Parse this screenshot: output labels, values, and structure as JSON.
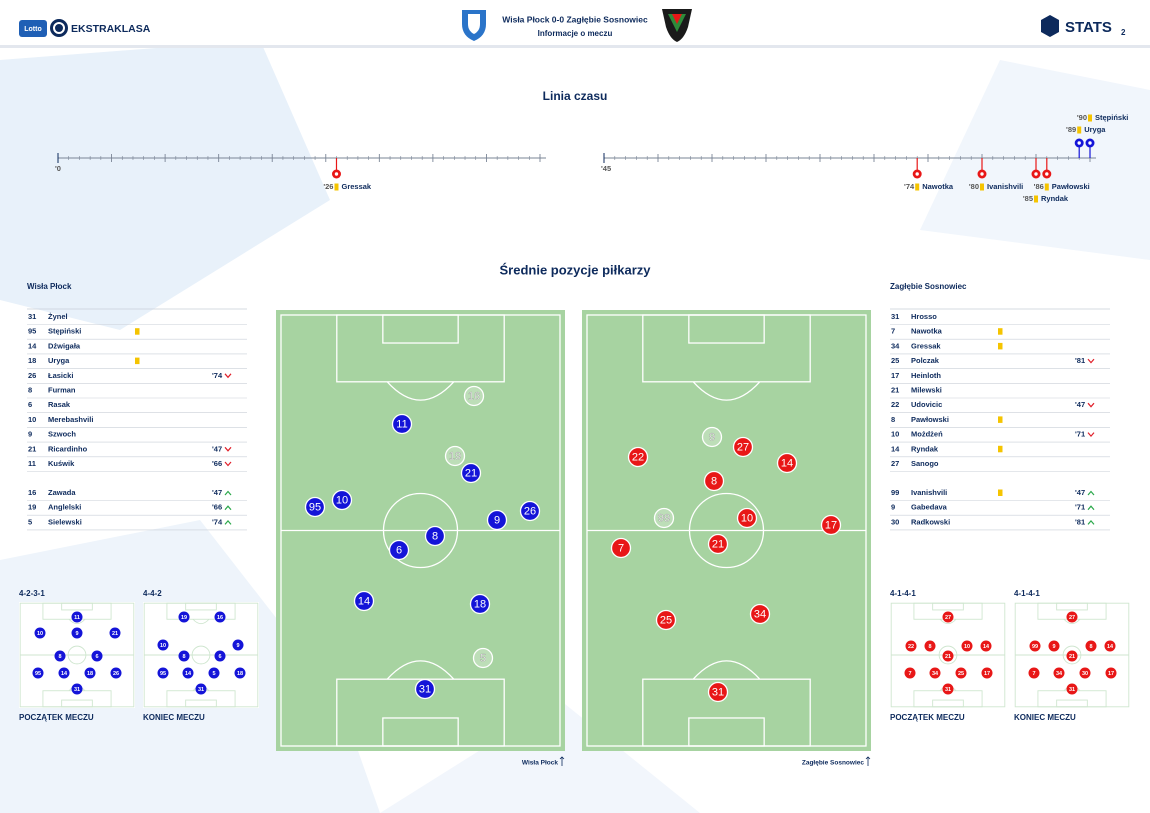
{
  "header": {
    "sponsor": "Lotto",
    "league": "EKSTRAKLASA",
    "title": "Wisła Płock 0-0 Zagłębie Sosnowiec",
    "subtitle": "Informacje o meczu",
    "brand": "STATS",
    "page": "2"
  },
  "timeline": {
    "title": "Linia czasu",
    "halves": [
      {
        "xlim": [
          0,
          45
        ],
        "tick": {
          "value": 0,
          "label": "'0"
        },
        "events": [
          {
            "minute": 26,
            "label": "'26",
            "player": "Gressak",
            "card": "yellow",
            "side": "away"
          }
        ]
      },
      {
        "xlim": [
          45,
          90
        ],
        "tick": {
          "value": 45,
          "label": "'45"
        },
        "events": [
          {
            "minute": 74,
            "label": "'74",
            "player": "Nawotka",
            "card": "yellow",
            "side": "away"
          },
          {
            "minute": 80,
            "label": "'80",
            "player": "Ivanishvili",
            "card": "yellow",
            "side": "away"
          },
          {
            "minute": 85,
            "label": "'85",
            "player": "Ryndak",
            "card": "yellow",
            "side": "away"
          },
          {
            "minute": 86,
            "label": "'86",
            "player": "Pawłowski",
            "card": "yellow",
            "side": "away"
          },
          {
            "minute": 89,
            "label": "'89",
            "player": "Uryga",
            "card": "yellow",
            "side": "home"
          },
          {
            "minute": 90,
            "label": "'90",
            "player": "Stępiński",
            "card": "yellow",
            "side": "home"
          }
        ]
      }
    ]
  },
  "positions": {
    "title": "Średnie pozycje piłkarzy",
    "teams": [
      {
        "name": "Wisła Płock",
        "side": "home",
        "color": "#1414d8",
        "players": [
          {
            "number": 31,
            "name": "Żynel"
          },
          {
            "number": 95,
            "name": "Stępiński",
            "card": "yellow"
          },
          {
            "number": 14,
            "name": "Dźwigała"
          },
          {
            "number": 18,
            "name": "Uryga",
            "card": "yellow"
          },
          {
            "number": 26,
            "name": "Łasicki",
            "sub": "'74",
            "dir": "out"
          },
          {
            "number": 8,
            "name": "Furman"
          },
          {
            "number": 6,
            "name": "Rasak"
          },
          {
            "number": 10,
            "name": "Merebashvili"
          },
          {
            "number": 9,
            "name": "Szwoch"
          },
          {
            "number": 21,
            "name": "Ricardinho",
            "sub": "'47",
            "dir": "out"
          },
          {
            "number": 11,
            "name": "Kuświk",
            "sub": "'66",
            "dir": "out"
          }
        ],
        "subs": [
          {
            "number": 16,
            "name": "Zawada",
            "sub": "'47",
            "dir": "in"
          },
          {
            "number": 19,
            "name": "Anglelski",
            "sub": "'66",
            "dir": "in"
          },
          {
            "number": 5,
            "name": "Sielewski",
            "sub": "'74",
            "dir": "in"
          }
        ],
        "pitch": [
          {
            "number": 16,
            "substitute": true
          },
          {
            "number": 11
          },
          {
            "number": 19,
            "substitute": true
          },
          {
            "number": 21
          },
          {
            "number": 95
          },
          {
            "number": 10
          },
          {
            "number": 26
          },
          {
            "number": 9
          },
          {
            "number": 8
          },
          {
            "number": 6
          },
          {
            "number": 14
          },
          {
            "number": 18
          },
          {
            "number": 5,
            "substitute": true
          },
          {
            "number": 31
          }
        ],
        "formations": [
          {
            "name": "4-2-3-1",
            "label": "POCZĄTEK MECZU",
            "numbers": [
              11,
              10,
              9,
              21,
              8,
              6,
              95,
              14,
              18,
              26,
              31
            ]
          },
          {
            "name": "4-4-2",
            "label": "KONIEC MECZU",
            "numbers": [
              19,
              16,
              10,
              9,
              8,
              6,
              95,
              14,
              5,
              18,
              31
            ]
          }
        ]
      },
      {
        "name": "Zagłębie Sosnowiec",
        "side": "away",
        "color": "#e81717",
        "players": [
          {
            "number": 31,
            "name": "Hrosso"
          },
          {
            "number": 7,
            "name": "Nawotka",
            "card": "yellow"
          },
          {
            "number": 34,
            "name": "Gressak",
            "card": "yellow"
          },
          {
            "number": 25,
            "name": "Polczak",
            "sub": "'81",
            "dir": "out"
          },
          {
            "number": 17,
            "name": "Heinloth"
          },
          {
            "number": 21,
            "name": "Milewski"
          },
          {
            "number": 22,
            "name": "Udovicic",
            "sub": "'47",
            "dir": "out"
          },
          {
            "number": 8,
            "name": "Pawłowski",
            "card": "yellow"
          },
          {
            "number": 10,
            "name": "Możdżeń",
            "sub": "'71",
            "dir": "out"
          },
          {
            "number": 14,
            "name": "Ryndak",
            "card": "yellow"
          },
          {
            "number": 27,
            "name": "Sanogo"
          }
        ],
        "subs": [
          {
            "number": 99,
            "name": "Ivanishvili",
            "card": "yellow",
            "sub": "'47",
            "dir": "in"
          },
          {
            "number": 9,
            "name": "Gabedava",
            "sub": "'71",
            "dir": "in"
          },
          {
            "number": 30,
            "name": "Radkowski",
            "sub": "'81",
            "dir": "in"
          }
        ],
        "pitch": [
          {
            "number": 9,
            "substitute": true
          },
          {
            "number": 27
          },
          {
            "number": 22
          },
          {
            "number": 14
          },
          {
            "number": 8
          },
          {
            "number": 99,
            "substitute": true
          },
          {
            "number": 10
          },
          {
            "number": 17
          },
          {
            "number": 21
          },
          {
            "number": 7
          },
          {
            "number": 34
          },
          {
            "number": 25
          },
          {
            "number": 31
          }
        ],
        "formations": [
          {
            "name": "4-1-4-1",
            "label": "POCZĄTEK MECZU",
            "numbers": [
              27,
              22,
              8,
              10,
              14,
              21,
              7,
              34,
              25,
              17,
              31
            ]
          },
          {
            "name": "4-1-4-1",
            "label": "KONIEC MECZU",
            "numbers": [
              27,
              99,
              9,
              8,
              14,
              21,
              7,
              34,
              30,
              17,
              31
            ]
          }
        ]
      }
    ]
  }
}
